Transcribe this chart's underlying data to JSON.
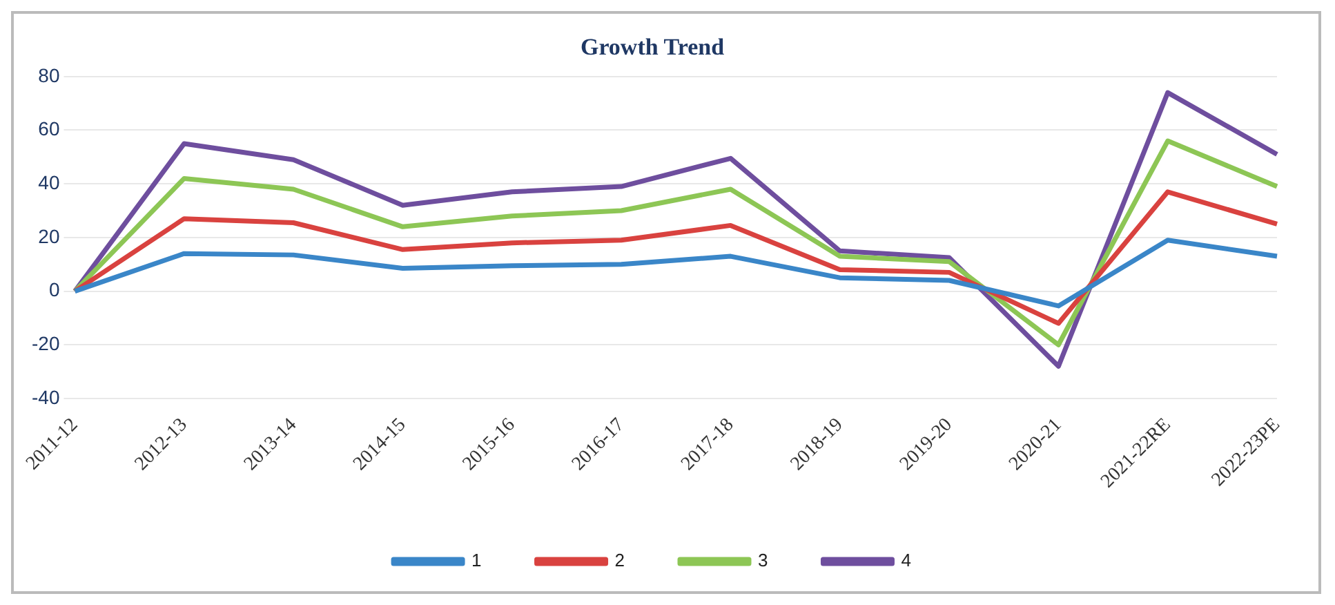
{
  "chart_data": {
    "type": "line",
    "title": "Growth Trend",
    "categories": [
      "2011-12",
      "2012-13",
      "2013-14",
      "2014-15",
      "2015-16",
      "2016-17",
      "2017-18",
      "2018-19",
      "2019-20",
      "2020-21",
      "2021-22RE",
      "2022-23PE"
    ],
    "series": [
      {
        "name": "1",
        "color": "#3a86c8",
        "values": [
          0,
          14,
          13.5,
          8.5,
          9.5,
          10,
          13,
          5,
          4,
          -5.5,
          19,
          13
        ]
      },
      {
        "name": "2",
        "color": "#d9423f",
        "values": [
          0,
          27,
          25.5,
          15.5,
          18,
          19,
          24.5,
          8,
          7,
          -12,
          37,
          25
        ]
      },
      {
        "name": "3",
        "color": "#8dc655",
        "values": [
          0,
          42,
          38,
          24,
          28,
          30,
          38,
          13,
          11,
          -20,
          56,
          39
        ]
      },
      {
        "name": "4",
        "color": "#6e4e9e",
        "values": [
          0,
          55,
          49,
          32,
          37,
          39,
          49.5,
          15,
          12.5,
          -28,
          74,
          51
        ]
      }
    ],
    "ylim": [
      -40,
      80
    ],
    "yticks": [
      -40,
      -20,
      0,
      20,
      40,
      60,
      80
    ],
    "grid": "y",
    "legend": "bottom",
    "marker": "none",
    "line_style": "solid"
  }
}
